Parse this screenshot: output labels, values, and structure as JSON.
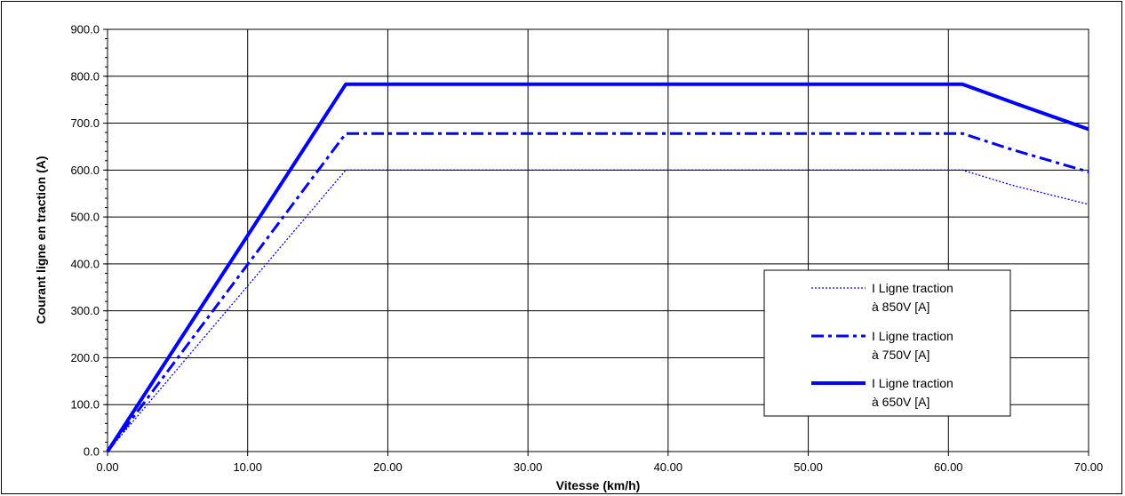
{
  "chart_data": {
    "type": "line",
    "xlabel": "Vitesse (km/h)",
    "ylabel": "Courant ligne en traction (A)",
    "xlim": [
      0,
      70
    ],
    "ylim": [
      0,
      900
    ],
    "x_ticks": [
      "0.00",
      "10.00",
      "20.00",
      "30.00",
      "40.00",
      "50.00",
      "60.00",
      "70.00"
    ],
    "y_ticks": [
      "0.0",
      "100.0",
      "200.0",
      "300.0",
      "400.0",
      "500.0",
      "600.0",
      "700.0",
      "800.0",
      "900.0"
    ],
    "grid": true,
    "legend_position": "bottom-right",
    "series": [
      {
        "name": "I Ligne traction à 850V [A]",
        "legend_lines": [
          "I Ligne traction",
          "à 850V [A]"
        ],
        "style": "dotted",
        "color": "#0000ff",
        "points": [
          [
            0,
            0
          ],
          [
            17.0,
            600
          ],
          [
            61.0,
            600
          ],
          [
            64.5,
            568
          ],
          [
            70,
            527
          ]
        ]
      },
      {
        "name": "I Ligne traction à 750V [A]",
        "legend_lines": [
          "I Ligne traction",
          "à 750V [A]"
        ],
        "style": "dashdot",
        "color": "#0000ff",
        "points": [
          [
            0,
            0
          ],
          [
            17.0,
            678
          ],
          [
            61.0,
            678
          ],
          [
            64.5,
            644
          ],
          [
            70,
            596
          ]
        ]
      },
      {
        "name": "I Ligne traction à 650V [A]",
        "legend_lines": [
          "I Ligne traction",
          "à 650V [A]"
        ],
        "style": "solid",
        "color": "#0000ff",
        "points": [
          [
            0,
            0
          ],
          [
            17.0,
            783
          ],
          [
            61.0,
            783
          ],
          [
            64.5,
            745
          ],
          [
            70,
            687
          ]
        ]
      }
    ]
  }
}
